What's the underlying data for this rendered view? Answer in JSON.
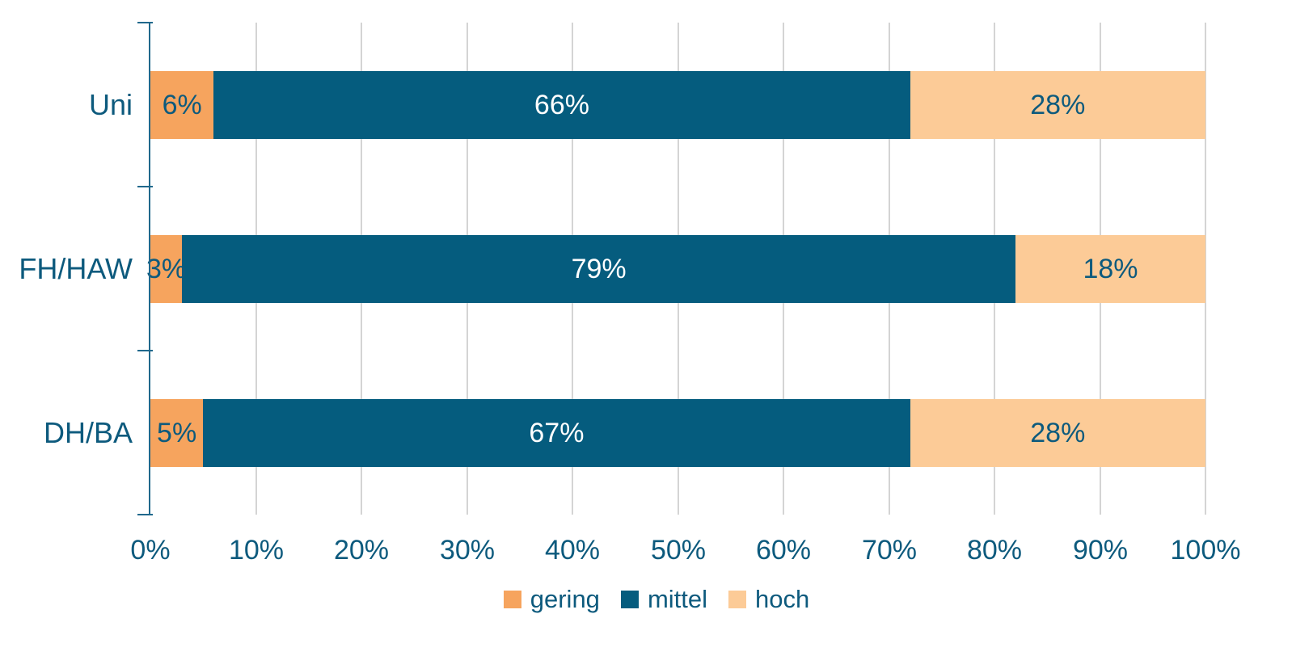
{
  "chart_data": {
    "type": "bar",
    "variant": "horizontal-stacked",
    "title": "",
    "xlabel": "",
    "ylabel": "",
    "categories": [
      "Uni",
      "FH/HAW",
      "DH/BA"
    ],
    "series": [
      {
        "name": "gering",
        "values": [
          6,
          3,
          5
        ],
        "labels": [
          "6%",
          "3%",
          "5%"
        ],
        "color": "#F6A45E",
        "label_color": "#0D5A7D"
      },
      {
        "name": "mittel",
        "values": [
          66,
          79,
          67
        ],
        "labels": [
          "66%",
          "79%",
          "67%"
        ],
        "color": "#055C7E",
        "label_color": "#FFFFFF"
      },
      {
        "name": "hoch",
        "values": [
          28,
          18,
          28
        ],
        "labels": [
          "28%",
          "18%",
          "28%"
        ],
        "color": "#FCCB97",
        "label_color": "#0D5A7D"
      }
    ],
    "x_axis": {
      "min": 0,
      "max": 100,
      "step": 10,
      "tick_labels": [
        "0%",
        "10%",
        "20%",
        "30%",
        "40%",
        "50%",
        "60%",
        "70%",
        "80%",
        "90%",
        "100%"
      ]
    },
    "grid": true,
    "legend": {
      "position": "bottom",
      "entries": [
        {
          "label": "gering",
          "color": "#F6A45E"
        },
        {
          "label": "mittel",
          "color": "#055C7E"
        },
        {
          "label": "hoch",
          "color": "#FCCB97"
        }
      ]
    }
  },
  "colors": {
    "background": "#FFFFFF",
    "axis": "#20688C",
    "gridline": "#D4D4D4",
    "text": "#0D5A7D"
  }
}
